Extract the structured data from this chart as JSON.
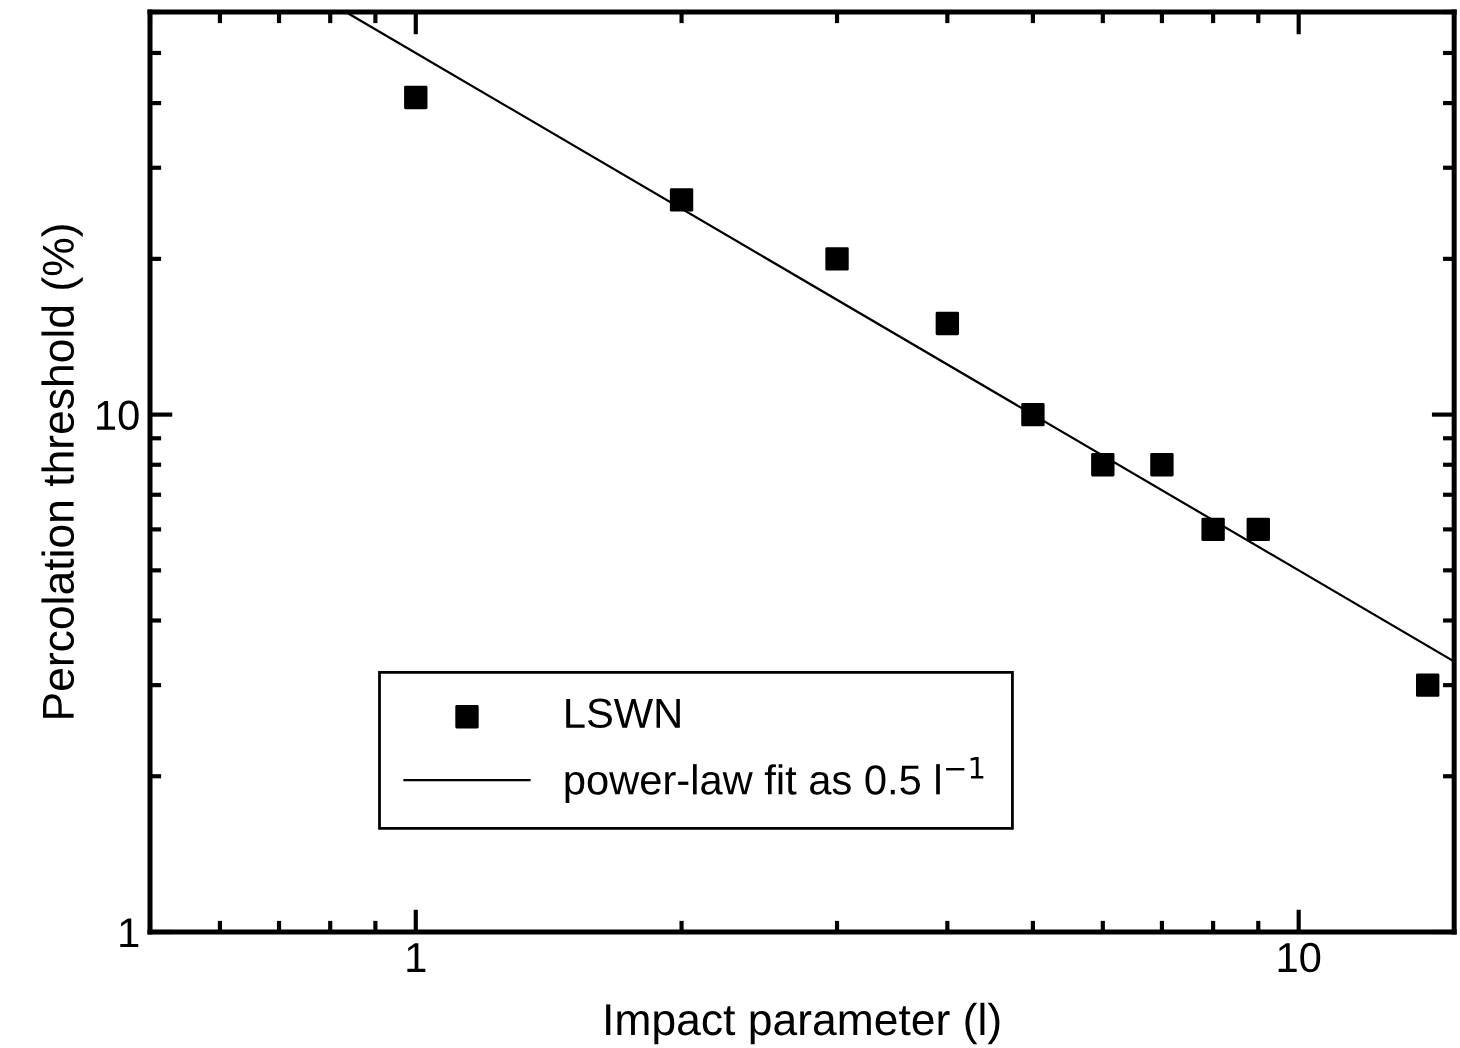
{
  "chart_data": {
    "type": "scatter",
    "xlabel": "Impact parameter (l)",
    "ylabel": "Percolation threshold (%)",
    "x": [
      1,
      2,
      3,
      4,
      5,
      6,
      7,
      8,
      9,
      14
    ],
    "series": [
      {
        "name": "LSWN",
        "color": "#000000",
        "marker": "square",
        "values": [
          41,
          26,
          20,
          15,
          10,
          8,
          8,
          6,
          6,
          3
        ]
      },
      {
        "name": "power-law fit as 0.5 l$^{−1}$",
        "type": "line",
        "color": "#000000",
        "x": [
          0.8333,
          15
        ],
        "values": [
          60,
          3.333
        ],
        "line_style": "solid"
      }
    ],
    "log": "xy",
    "xlim": [
      0.5,
      15
    ],
    "ylim": [
      1,
      60
    ],
    "xticks": [
      1,
      10
    ],
    "yticks": [
      1,
      10
    ],
    "grid": false,
    "legend": "bottom left"
  }
}
